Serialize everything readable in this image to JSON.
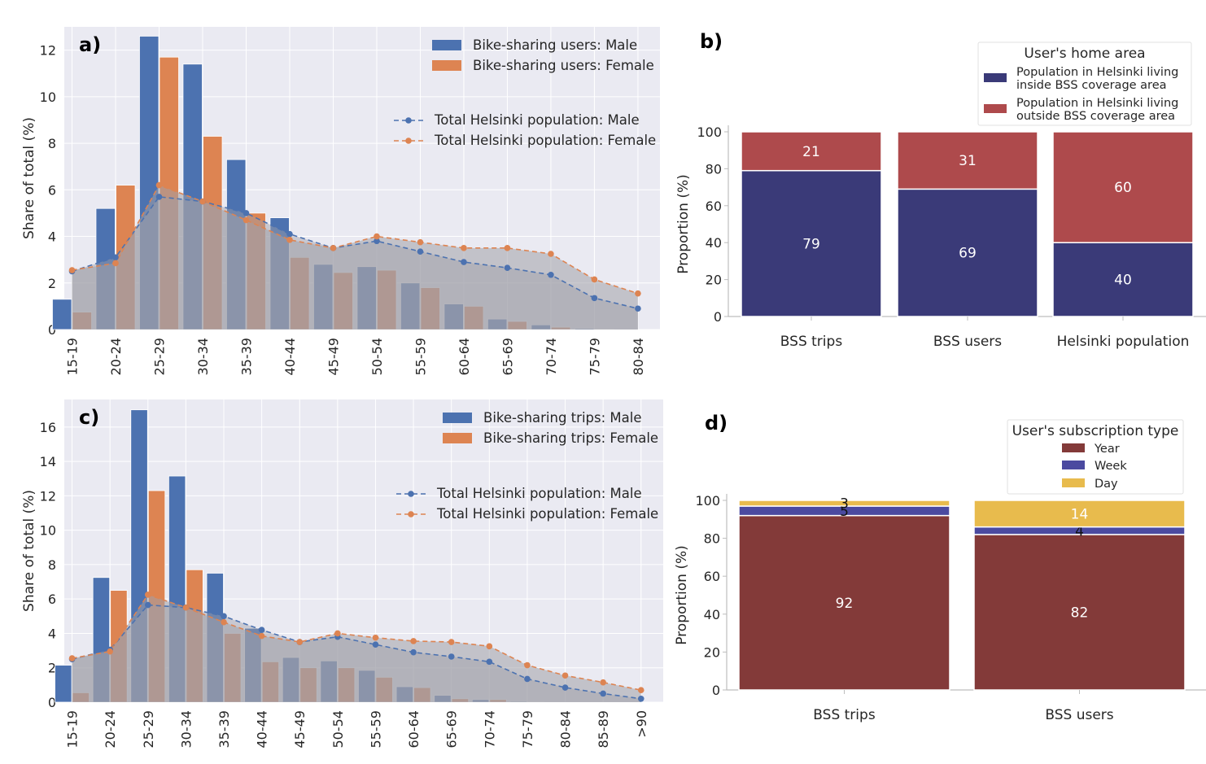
{
  "colors": {
    "axes_bg": "#eaeaf2",
    "grid": "#ffffff",
    "male_bar": "#4c72b0",
    "female_bar": "#dd8452",
    "pop_male_line": "#4c72b0",
    "pop_female_line": "#dd8452",
    "pop_fill": "#a0a0a8",
    "inside_area": "#3a3a78",
    "outside_area": "#ae4a4c",
    "year": "#833a39",
    "week": "#4b4aa0",
    "day": "#e8bb4d"
  },
  "chart_data": [
    {
      "panel": "a)",
      "type": "bar",
      "ylabel": "Share of total (%)",
      "ylim": [
        0,
        13.0
      ],
      "yticks": [
        0,
        2,
        4,
        6,
        8,
        10,
        12
      ],
      "categories": [
        "15-19",
        "20-24",
        "25-29",
        "30-34",
        "35-39",
        "40-44",
        "45-49",
        "50-54",
        "55-59",
        "60-64",
        "65-69",
        "70-74",
        "75-79",
        "80-84"
      ],
      "legend_bars": [
        "Bike-sharing users: Male",
        "Bike-sharing users: Female"
      ],
      "legend_lines": [
        "Total Helsinki population: Male",
        "Total Helsinki population: Female"
      ],
      "series": [
        {
          "name": "Bike-sharing users: Male",
          "kind": "bar",
          "values": [
            1.3,
            5.2,
            12.6,
            11.4,
            7.3,
            4.8,
            2.8,
            2.7,
            2.0,
            1.1,
            0.45,
            0.2,
            0.05,
            0
          ]
        },
        {
          "name": "Bike-sharing users: Female",
          "kind": "bar",
          "values": [
            0.75,
            6.2,
            11.7,
            8.3,
            5.0,
            3.1,
            2.45,
            2.55,
            1.8,
            1.0,
            0.35,
            0.1,
            0.02,
            0
          ]
        },
        {
          "name": "Total Helsinki population: Male",
          "kind": "line",
          "values": [
            2.5,
            3.1,
            5.7,
            5.5,
            5.0,
            4.1,
            3.5,
            3.8,
            3.35,
            2.9,
            2.65,
            2.35,
            1.35,
            0.9
          ]
        },
        {
          "name": "Total Helsinki population: Female",
          "kind": "line",
          "values": [
            2.55,
            2.85,
            6.2,
            5.5,
            4.7,
            3.85,
            3.5,
            4.0,
            3.75,
            3.5,
            3.5,
            3.25,
            2.15,
            1.55
          ]
        }
      ]
    },
    {
      "panel": "b)",
      "type": "bar",
      "stacked": true,
      "ylabel": "Proportion (%)",
      "ylim": [
        0,
        100
      ],
      "yticks": [
        0,
        20,
        40,
        60,
        80,
        100
      ],
      "categories": [
        "BSS trips",
        "BSS users",
        "Helsinki population"
      ],
      "legend_title": "User's home area",
      "series": [
        {
          "name": "Population in Helsinki living inside BSS coverage area",
          "name_lines": [
            "Population in Helsinki living",
            "inside BSS coverage area"
          ],
          "values": [
            79,
            69,
            40
          ]
        },
        {
          "name": "Population in Helsinki living outside BSS coverage area",
          "name_lines": [
            "Population in Helsinki living",
            "outside BSS coverage area"
          ],
          "values": [
            21,
            31,
            60
          ]
        }
      ]
    },
    {
      "panel": "c)",
      "type": "bar",
      "ylabel": "Share of total (%)",
      "ylim": [
        0,
        17.6
      ],
      "yticks": [
        0,
        2,
        4,
        6,
        8,
        10,
        12,
        14,
        16
      ],
      "categories": [
        "15-19",
        "20-24",
        "25-29",
        "30-34",
        "35-39",
        "40-44",
        "45-49",
        "50-54",
        "55-59",
        "60-64",
        "65-69",
        "70-74",
        "75-79",
        "80-84",
        "85-89",
        ">90"
      ],
      "legend_bars": [
        "Bike-sharing trips: Male",
        "Bike-sharing trips: Female"
      ],
      "legend_lines": [
        "Total Helsinki population: Male",
        "Total Helsinki population: Female"
      ],
      "series": [
        {
          "name": "Bike-sharing trips: Male",
          "kind": "bar",
          "values": [
            2.15,
            7.25,
            17.0,
            13.15,
            7.5,
            4.3,
            2.6,
            2.4,
            1.85,
            0.9,
            0.4,
            0.15,
            0.05,
            0,
            0,
            0
          ]
        },
        {
          "name": "Bike-sharing trips: Female",
          "kind": "bar",
          "values": [
            0.55,
            6.5,
            12.3,
            7.7,
            4.0,
            2.35,
            2.0,
            2.0,
            1.45,
            0.85,
            0.2,
            0.15,
            0.02,
            0,
            0,
            0
          ]
        },
        {
          "name": "Total Helsinki population: Male",
          "kind": "line",
          "values": [
            2.5,
            3.05,
            5.65,
            5.5,
            5.0,
            4.2,
            3.5,
            3.8,
            3.35,
            2.9,
            2.65,
            2.35,
            1.35,
            0.85,
            0.5,
            0.2
          ]
        },
        {
          "name": "Total Helsinki population: Female",
          "kind": "line",
          "values": [
            2.55,
            2.95,
            6.25,
            5.5,
            4.65,
            3.85,
            3.5,
            4.0,
            3.75,
            3.55,
            3.5,
            3.25,
            2.15,
            1.55,
            1.15,
            0.7
          ]
        }
      ]
    },
    {
      "panel": "d)",
      "type": "bar",
      "stacked": true,
      "ylabel": "Proportion (%)",
      "ylim": [
        0,
        100
      ],
      "yticks": [
        0,
        20,
        40,
        60,
        80,
        100
      ],
      "categories": [
        "BSS trips",
        "BSS users"
      ],
      "legend_title": "User's subscription type",
      "series": [
        {
          "name": "Year",
          "values": [
            92,
            82
          ]
        },
        {
          "name": "Week",
          "values": [
            5,
            4
          ]
        },
        {
          "name": "Day",
          "values": [
            3,
            14
          ]
        }
      ]
    }
  ]
}
